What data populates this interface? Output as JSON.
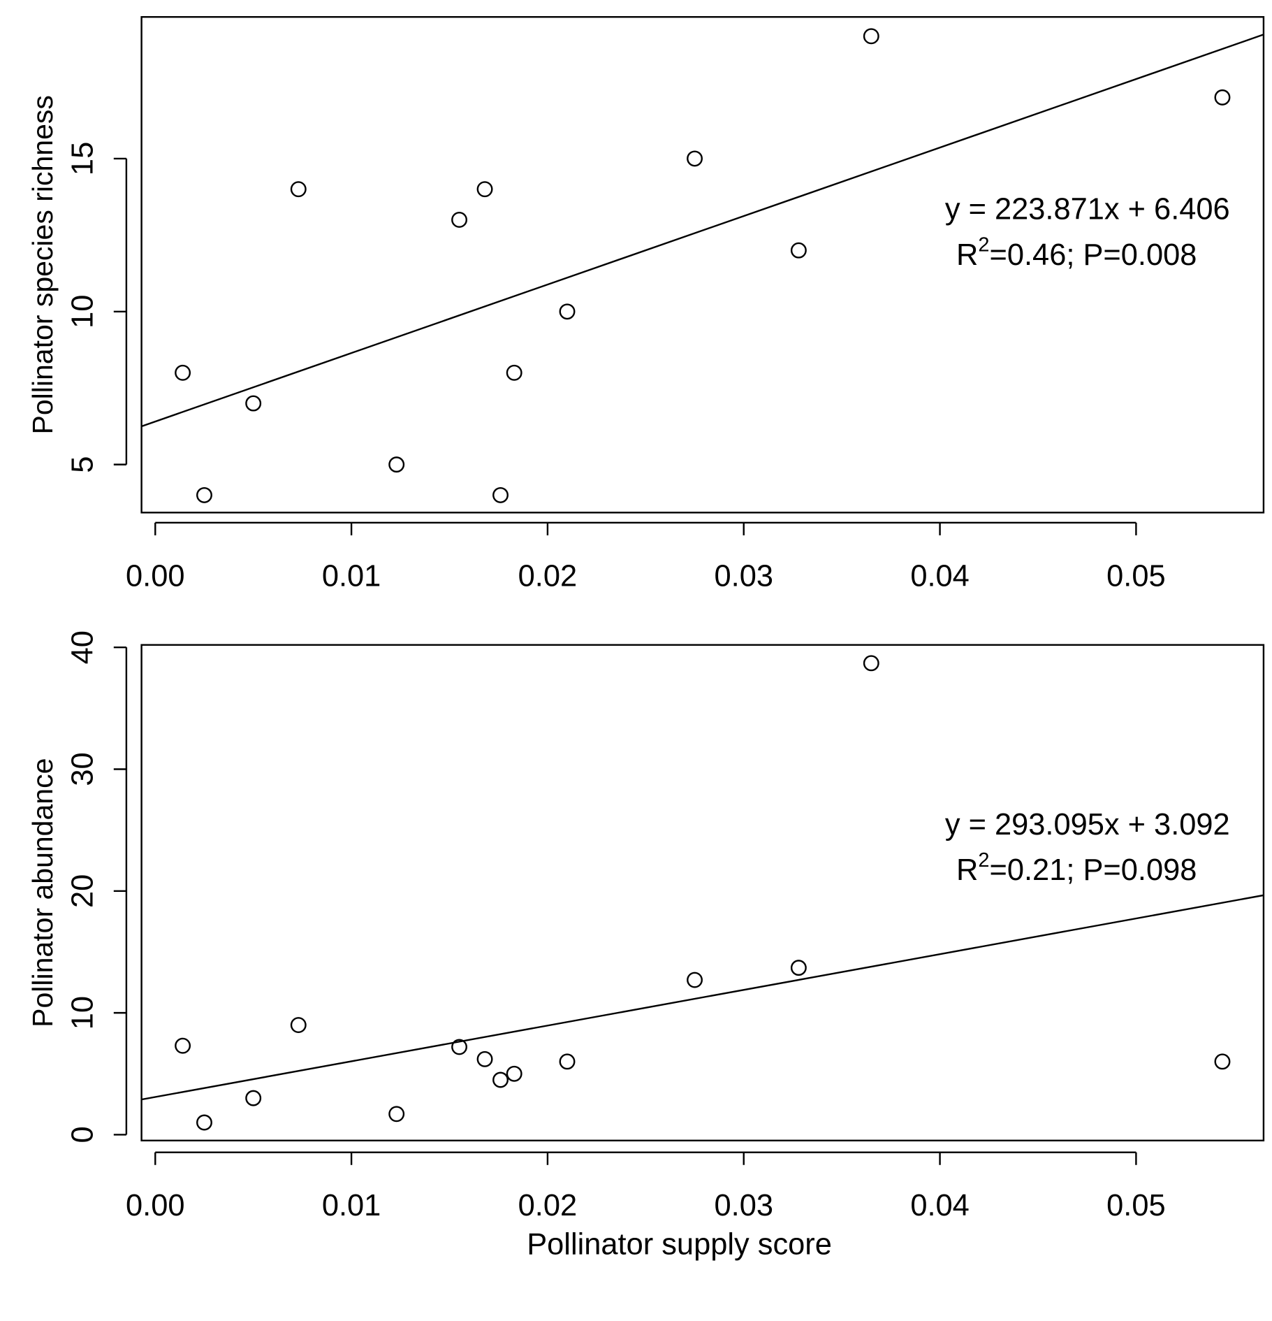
{
  "chart_data": [
    {
      "type": "scatter",
      "title": "",
      "xlabel": "",
      "ylabel": "Pollinator species richness",
      "xlim": [
        -0.0007,
        0.0565
      ],
      "ylim": [
        3.43,
        19.63
      ],
      "xticks": [
        "0.00",
        "0.01",
        "0.02",
        "0.03",
        "0.04",
        "0.05"
      ],
      "xtick_values": [
        0,
        0.01,
        0.02,
        0.03,
        0.04,
        0.05
      ],
      "yticks": [
        "5",
        "10",
        "15"
      ],
      "ytick_values": [
        5,
        10,
        15
      ],
      "x": [
        0.0014,
        0.0025,
        0.005,
        0.0073,
        0.0123,
        0.0155,
        0.0168,
        0.0176,
        0.0183,
        0.021,
        0.0275,
        0.0328,
        0.0365,
        0.0544
      ],
      "y": [
        8,
        4,
        7,
        14,
        5,
        13,
        14,
        4,
        8,
        10,
        15,
        12,
        19,
        17
      ],
      "fit": {
        "slope": 223.871,
        "intercept": 6.406
      },
      "annotation": {
        "equation": "y = 223.871x + 6.406",
        "stats_r": "R",
        "stats_sup": "2",
        "stats_rest": "=0.46; P=0.008"
      },
      "grid": false
    },
    {
      "type": "scatter",
      "title": "",
      "xlabel": "Pollinator supply score",
      "ylabel": "Pollinator abundance",
      "xlim": [
        -0.0007,
        0.0565
      ],
      "ylim": [
        -0.48,
        40.2
      ],
      "xticks": [
        "0.00",
        "0.01",
        "0.02",
        "0.03",
        "0.04",
        "0.05"
      ],
      "xtick_values": [
        0,
        0.01,
        0.02,
        0.03,
        0.04,
        0.05
      ],
      "yticks": [
        "0",
        "10",
        "20",
        "30",
        "40"
      ],
      "ytick_values": [
        0,
        10,
        20,
        30,
        40
      ],
      "x": [
        0.0014,
        0.0025,
        0.005,
        0.0073,
        0.0123,
        0.0155,
        0.0168,
        0.0176,
        0.0183,
        0.021,
        0.0275,
        0.0328,
        0.0365,
        0.0544
      ],
      "y": [
        7.3,
        1.0,
        3.0,
        9.0,
        1.7,
        7.2,
        6.2,
        4.5,
        5.0,
        6.0,
        12.7,
        13.7,
        38.7,
        6.0
      ],
      "fit": {
        "slope": 293.095,
        "intercept": 3.092
      },
      "annotation": {
        "equation": "y = 293.095x + 3.092",
        "stats_r": "R",
        "stats_sup": "2",
        "stats_rest": "=0.21; P=0.098"
      },
      "grid": false
    }
  ]
}
